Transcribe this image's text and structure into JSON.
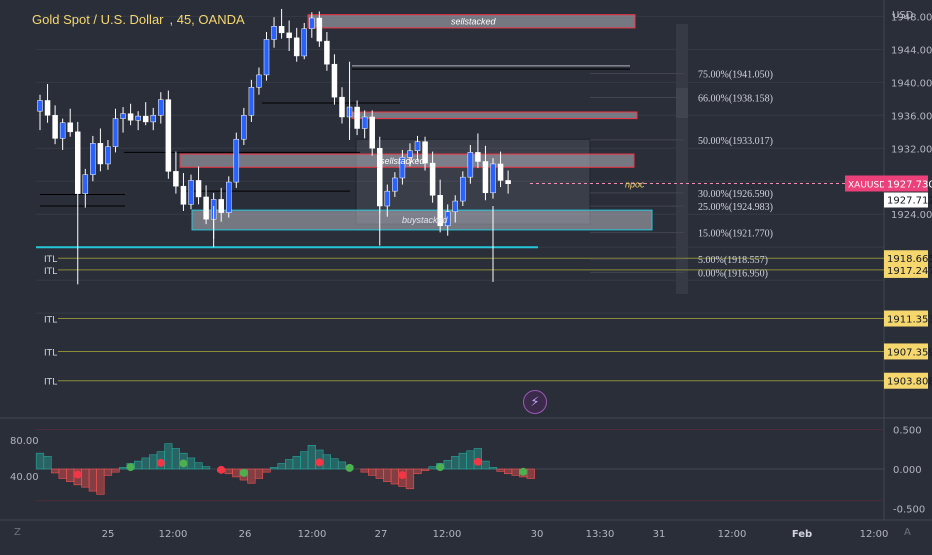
{
  "header": {
    "symbol": "Gold Spot / U.S. Dollar",
    "interval": "45",
    "broker": "OANDA"
  },
  "colors": {
    "background": "#2a2e39",
    "bull_candle": "#2962ff",
    "bear_candle": "#ffffff",
    "zone_fill": "#b2b5be",
    "zone_border_red": "#f23645",
    "zone_border_cyan": "#26c6da",
    "ttl_line": "#8b8b3a",
    "price_tag": "#f5d76e",
    "last_price": "#ef5350",
    "osc_up": "#26a69a",
    "osc_down": "#ef5350"
  },
  "icons": {
    "lightning": "lightning-icon",
    "tv_logo": "tradingview-logo-icon",
    "auto_scale": "auto-scale-icon"
  },
  "chart_data": [
    {
      "type": "candlestick",
      "title": "Gold Spot / U.S. Dollar, 45, OANDA",
      "y_unit": "USD",
      "ylim": [
        1900.5,
        1949.5
      ],
      "y_ticks": [
        1948.0,
        1944.0,
        1940.0,
        1936.0,
        1932.0,
        1928.0,
        1924.0,
        1920.0,
        1916.0,
        1912.0
      ],
      "y_tick_labels": [
        "1948.000",
        "1944.000",
        "1940.000",
        "1936.000",
        "1932.000",
        "",
        "1924.000",
        "",
        "",
        ""
      ],
      "x_tick_labels": [
        "25",
        "12:00",
        "26",
        "12:00",
        "27",
        "12:00",
        "30",
        "13:30",
        "31",
        "12:00",
        "Feb",
        "12:00"
      ],
      "last_price": 1927.73,
      "last_price_label": "1927.730",
      "symbol_tag": "XAUUSD",
      "price_tag_secondary": "1927.712",
      "candles_ohlc": [
        [
          1936.5,
          1938.5,
          1934.2,
          1937.8
        ],
        [
          1937.8,
          1939.8,
          1935.1,
          1936.0
        ],
        [
          1936.0,
          1937.2,
          1932.5,
          1933.2
        ],
        [
          1933.2,
          1935.6,
          1931.8,
          1935.1
        ],
        [
          1935.1,
          1936.8,
          1933.4,
          1934.0
        ],
        [
          1934.0,
          1935.2,
          1925.0,
          1926.5
        ],
        [
          1926.5,
          1929.5,
          1924.8,
          1928.8
        ],
        [
          1928.8,
          1933.5,
          1928.0,
          1932.6
        ],
        [
          1932.6,
          1934.4,
          1929.2,
          1930.1
        ],
        [
          1930.1,
          1933.0,
          1929.4,
          1932.2
        ],
        [
          1932.2,
          1936.8,
          1931.5,
          1935.6
        ],
        [
          1935.6,
          1937.0,
          1933.9,
          1936.2
        ],
        [
          1936.2,
          1937.4,
          1934.8,
          1935.4
        ],
        [
          1935.4,
          1936.5,
          1934.2,
          1935.9
        ],
        [
          1935.9,
          1937.6,
          1934.8,
          1935.2
        ],
        [
          1935.2,
          1936.9,
          1934.2,
          1936.0
        ],
        [
          1936.0,
          1938.8,
          1935.0,
          1937.9
        ],
        [
          1937.9,
          1939.0,
          1928.3,
          1929.2
        ],
        [
          1929.2,
          1931.6,
          1926.5,
          1927.4
        ],
        [
          1927.4,
          1929.0,
          1924.4,
          1925.2
        ],
        [
          1925.2,
          1928.8,
          1924.6,
          1928.1
        ],
        [
          1928.1,
          1929.8,
          1925.2,
          1926.1
        ],
        [
          1926.1,
          1927.5,
          1922.8,
          1923.4
        ],
        [
          1923.4,
          1926.6,
          1921.0,
          1925.8
        ],
        [
          1925.8,
          1927.2,
          1923.1,
          1924.2
        ],
        [
          1924.2,
          1928.6,
          1923.6,
          1927.9
        ],
        [
          1927.9,
          1933.9,
          1927.2,
          1933.1
        ],
        [
          1933.1,
          1936.9,
          1932.4,
          1936.0
        ],
        [
          1936.0,
          1940.3,
          1935.2,
          1939.4
        ],
        [
          1939.4,
          1941.8,
          1938.5,
          1940.9
        ],
        [
          1940.9,
          1946.1,
          1940.2,
          1945.2
        ],
        [
          1945.2,
          1947.9,
          1944.2,
          1946.8
        ],
        [
          1946.8,
          1948.9,
          1945.3,
          1946.0
        ],
        [
          1946.0,
          1947.5,
          1943.8,
          1945.4
        ],
        [
          1945.4,
          1946.6,
          1942.5,
          1943.2
        ],
        [
          1943.2,
          1947.2,
          1942.8,
          1946.5
        ],
        [
          1946.5,
          1948.5,
          1945.4,
          1947.8
        ],
        [
          1947.8,
          1948.6,
          1944.3,
          1945.0
        ],
        [
          1945.0,
          1946.1,
          1941.4,
          1942.2
        ],
        [
          1942.2,
          1943.4,
          1937.3,
          1938.2
        ],
        [
          1938.2,
          1939.4,
          1935.0,
          1935.8
        ],
        [
          1935.8,
          1937.9,
          1934.5,
          1937.0
        ],
        [
          1937.0,
          1937.8,
          1933.6,
          1934.4
        ],
        [
          1934.4,
          1936.6,
          1933.2,
          1935.8
        ],
        [
          1935.8,
          1936.6,
          1931.1,
          1932.0
        ],
        [
          1932.0,
          1933.4,
          1924.2,
          1925.0
        ],
        [
          1925.0,
          1927.6,
          1923.7,
          1926.8
        ],
        [
          1926.8,
          1929.1,
          1926.1,
          1928.4
        ],
        [
          1928.4,
          1931.8,
          1927.6,
          1930.9
        ],
        [
          1930.9,
          1932.6,
          1929.8,
          1931.7
        ],
        [
          1931.7,
          1933.5,
          1930.5,
          1932.8
        ],
        [
          1932.8,
          1933.4,
          1929.3,
          1930.2
        ],
        [
          1930.2,
          1931.6,
          1925.4,
          1926.3
        ],
        [
          1926.3,
          1928.2,
          1921.8,
          1922.6
        ],
        [
          1922.6,
          1925.2,
          1921.4,
          1924.3
        ],
        [
          1924.3,
          1926.3,
          1923.0,
          1925.6
        ],
        [
          1925.6,
          1929.2,
          1925.0,
          1928.5
        ],
        [
          1928.5,
          1932.4,
          1927.7,
          1931.5
        ],
        [
          1931.5,
          1933.8,
          1929.6,
          1930.4
        ],
        [
          1930.4,
          1932.3,
          1925.7,
          1926.6
        ],
        [
          1926.6,
          1930.8,
          1925.9,
          1930.1
        ],
        [
          1930.1,
          1931.6,
          1927.3,
          1928.1
        ],
        [
          1928.1,
          1929.3,
          1926.5,
          1927.7
        ]
      ],
      "zones": [
        {
          "label": "sellstacked",
          "y0": 1946.6,
          "y1": 1948.2,
          "x_start": 1,
          "x_end": "right",
          "border": "red"
        },
        {
          "label": "",
          "y0": 1935.6,
          "y1": 1936.4,
          "x_start": 1,
          "x_end": "right",
          "border": "red"
        },
        {
          "label": "sellstacked",
          "y0": 1929.7,
          "y1": 1931.3,
          "x_start": 1,
          "x_end": "right",
          "border": "red"
        },
        {
          "label": "buystacked",
          "y0": 1922.1,
          "y1": 1924.5,
          "x_start": 1,
          "x_end": "right",
          "border": "cyan"
        }
      ],
      "range_box": {
        "y0": 1922.8,
        "y1": 1933.1
      },
      "fib_levels": [
        {
          "label": "75.00%(1941.050)",
          "price": 1941.05
        },
        {
          "label": "66.00%(1938.158)",
          "price": 1938.158
        },
        {
          "label": "50.00%(1933.017)",
          "price": 1933.017
        },
        {
          "label": "30.00%(1926.590)",
          "price": 1926.59
        },
        {
          "label": "25.00%(1924.983)",
          "price": 1924.983
        },
        {
          "label": "15.00%(1921.770)",
          "price": 1921.77
        },
        {
          "label": "5.00%(1918.557)",
          "price": 1918.557
        },
        {
          "label": "0.00%(1916.950)",
          "price": 1916.95
        }
      ],
      "npoc": {
        "label": "npoc",
        "price": 1927.73
      },
      "ttl_lines": [
        {
          "label": "ITL",
          "price": 1918.665,
          "tag": "1918.665"
        },
        {
          "label": "ITL",
          "price": 1917.247,
          "tag": "1917.247"
        },
        {
          "label": "ITL",
          "price": 1911.353,
          "tag": "1911.353"
        },
        {
          "label": "ITL",
          "price": 1907.359,
          "tag": "1907.359"
        },
        {
          "label": "ITL",
          "price": 1903.808,
          "tag": "1903.808"
        }
      ]
    },
    {
      "type": "area",
      "title": "",
      "ylim": [
        -0.62,
        0.62
      ],
      "y_ticks": [
        0.5,
        0.0,
        -0.5
      ],
      "y_tick_labels": [
        "0.500",
        "0.000",
        "-0.500"
      ],
      "left_tick_labels": [
        "80.00",
        "40.00"
      ],
      "values": [
        0.2,
        0.16,
        -0.05,
        -0.12,
        -0.16,
        -0.2,
        -0.23,
        -0.28,
        -0.32,
        -0.08,
        -0.04,
        0.02,
        0.07,
        0.1,
        0.14,
        0.18,
        0.22,
        0.32,
        0.26,
        0.2,
        0.14,
        0.08,
        0.03,
        0.0,
        -0.03,
        -0.06,
        -0.1,
        -0.14,
        -0.18,
        -0.12,
        -0.04,
        0.02,
        0.07,
        0.12,
        0.16,
        0.22,
        0.3,
        0.24,
        0.18,
        0.13,
        0.09,
        0.04,
        0.0,
        -0.04,
        -0.08,
        -0.12,
        -0.16,
        -0.19,
        -0.22,
        -0.25,
        -0.06,
        -0.02,
        0.03,
        0.07,
        0.11,
        0.16,
        0.2,
        0.23,
        0.26,
        0.1,
        0.02,
        -0.03,
        -0.06,
        -0.08,
        -0.1,
        -0.12
      ],
      "dots": [
        {
          "index": 5,
          "color": "red"
        },
        {
          "index": 12,
          "color": "green"
        },
        {
          "index": 16,
          "color": "red"
        },
        {
          "index": 19,
          "color": "green"
        },
        {
          "index": 24,
          "color": "red"
        },
        {
          "index": 27,
          "color": "green"
        },
        {
          "index": 37,
          "color": "red"
        },
        {
          "index": 41,
          "color": "green"
        },
        {
          "index": 48,
          "color": "red"
        },
        {
          "index": 53,
          "color": "green"
        },
        {
          "index": 58,
          "color": "red"
        },
        {
          "index": 64,
          "color": "green"
        }
      ]
    }
  ]
}
